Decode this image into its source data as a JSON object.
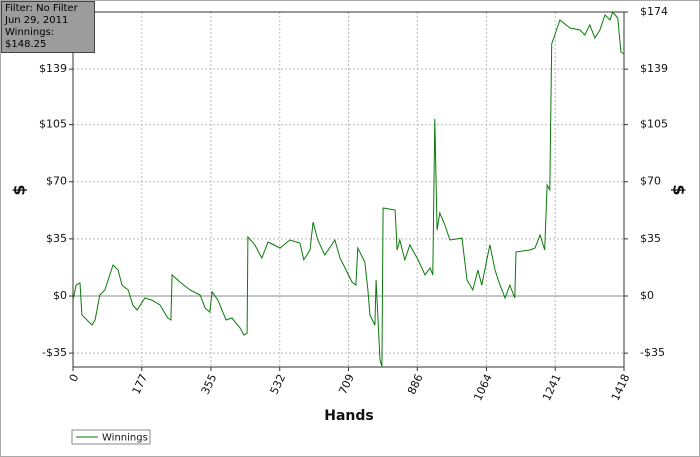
{
  "chart_data": {
    "type": "line",
    "annotations": [
      "Filter: No Filter",
      "Jun 29, 2011",
      "Winnings: $148.25"
    ],
    "xlabel": "Hands",
    "ylabel": "$",
    "xlim": [
      0,
      1418
    ],
    "xticks": [
      0,
      177,
      355,
      532,
      709,
      886,
      1064,
      1241,
      1418
    ],
    "ylim": [
      -43.5,
      174
    ],
    "yticks": [
      {
        "value": -35,
        "label": "-$35"
      },
      {
        "value": 0,
        "label": "$0"
      },
      {
        "value": 35,
        "label": "$35"
      },
      {
        "value": 70,
        "label": "$70"
      },
      {
        "value": 105,
        "label": "$105"
      },
      {
        "value": 139,
        "label": "$139"
      },
      {
        "value": 174,
        "label": "$174"
      }
    ],
    "grid": true,
    "legend": "bottom-left",
    "series": [
      {
        "name": "Winnings",
        "color": "#0a7a0a",
        "x": [
          0,
          8,
          18,
          23,
          49,
          57,
          69,
          82,
          103,
          116,
          126,
          142,
          154,
          165,
          185,
          203,
          224,
          244,
          252,
          255,
          275,
          301,
          327,
          340,
          352,
          358,
          373,
          394,
          409,
          430,
          440,
          448,
          450,
          468,
          486,
          502,
          533,
          558,
          584,
          594,
          610,
          618,
          630,
          648,
          674,
          687,
          700,
          718,
          728,
          733,
          751,
          759,
          764,
          777,
          780,
          790,
          795,
          798,
          829,
          834,
          841,
          854,
          867,
          888,
          906,
          919,
          926,
          931,
          937,
          944,
          957,
          970,
          1001,
          1014,
          1029,
          1042,
          1052,
          1065,
          1073,
          1086,
          1099,
          1112,
          1124,
          1137,
          1140,
          1176,
          1189,
          1202,
          1214,
          1220,
          1227,
          1232,
          1240,
          1253,
          1279,
          1305,
          1317,
          1330,
          1343,
          1356,
          1369,
          1382,
          1389,
          1402,
          1410,
          1418
        ],
        "values": [
          -2.5,
          6.7,
          8.0,
          -11.6,
          -17.8,
          -14.7,
          0.6,
          3.7,
          19.0,
          15.9,
          6.7,
          3.7,
          -5.5,
          -8.6,
          -1.2,
          -2.5,
          -5.5,
          -13.5,
          -14.7,
          12.9,
          8.6,
          3.7,
          0.6,
          -7.4,
          -9.8,
          2.5,
          -2.5,
          -14.7,
          -13.5,
          -19.6,
          -23.9,
          -22.7,
          36.2,
          31.3,
          23.3,
          33.1,
          29.4,
          34.3,
          32.5,
          22.1,
          28.2,
          45.3,
          34.3,
          25.1,
          34.3,
          23.3,
          17.2,
          8.6,
          6.7,
          29.4,
          20.8,
          3.7,
          -11.6,
          -17.8,
          9.8,
          -39.2,
          -43,
          53.9,
          52.7,
          28.2,
          34.3,
          22.1,
          31.3,
          22.1,
          12.9,
          17.2,
          12.9,
          108.5,
          40.4,
          50.9,
          43.5,
          34.3,
          35.5,
          9.8,
          3.7,
          15.9,
          6.7,
          22.1,
          31.3,
          15.9,
          6.7,
          -1.2,
          6.7,
          -1.2,
          27.0,
          28.2,
          29.4,
          37.4,
          28.2,
          68.0,
          65.0,
          154.4,
          159.9,
          169.1,
          164.2,
          163.0,
          159.9,
          166.1,
          158.1,
          163.0,
          172.2,
          169.1,
          174.0,
          170.3,
          149.5,
          148.25
        ]
      }
    ]
  }
}
